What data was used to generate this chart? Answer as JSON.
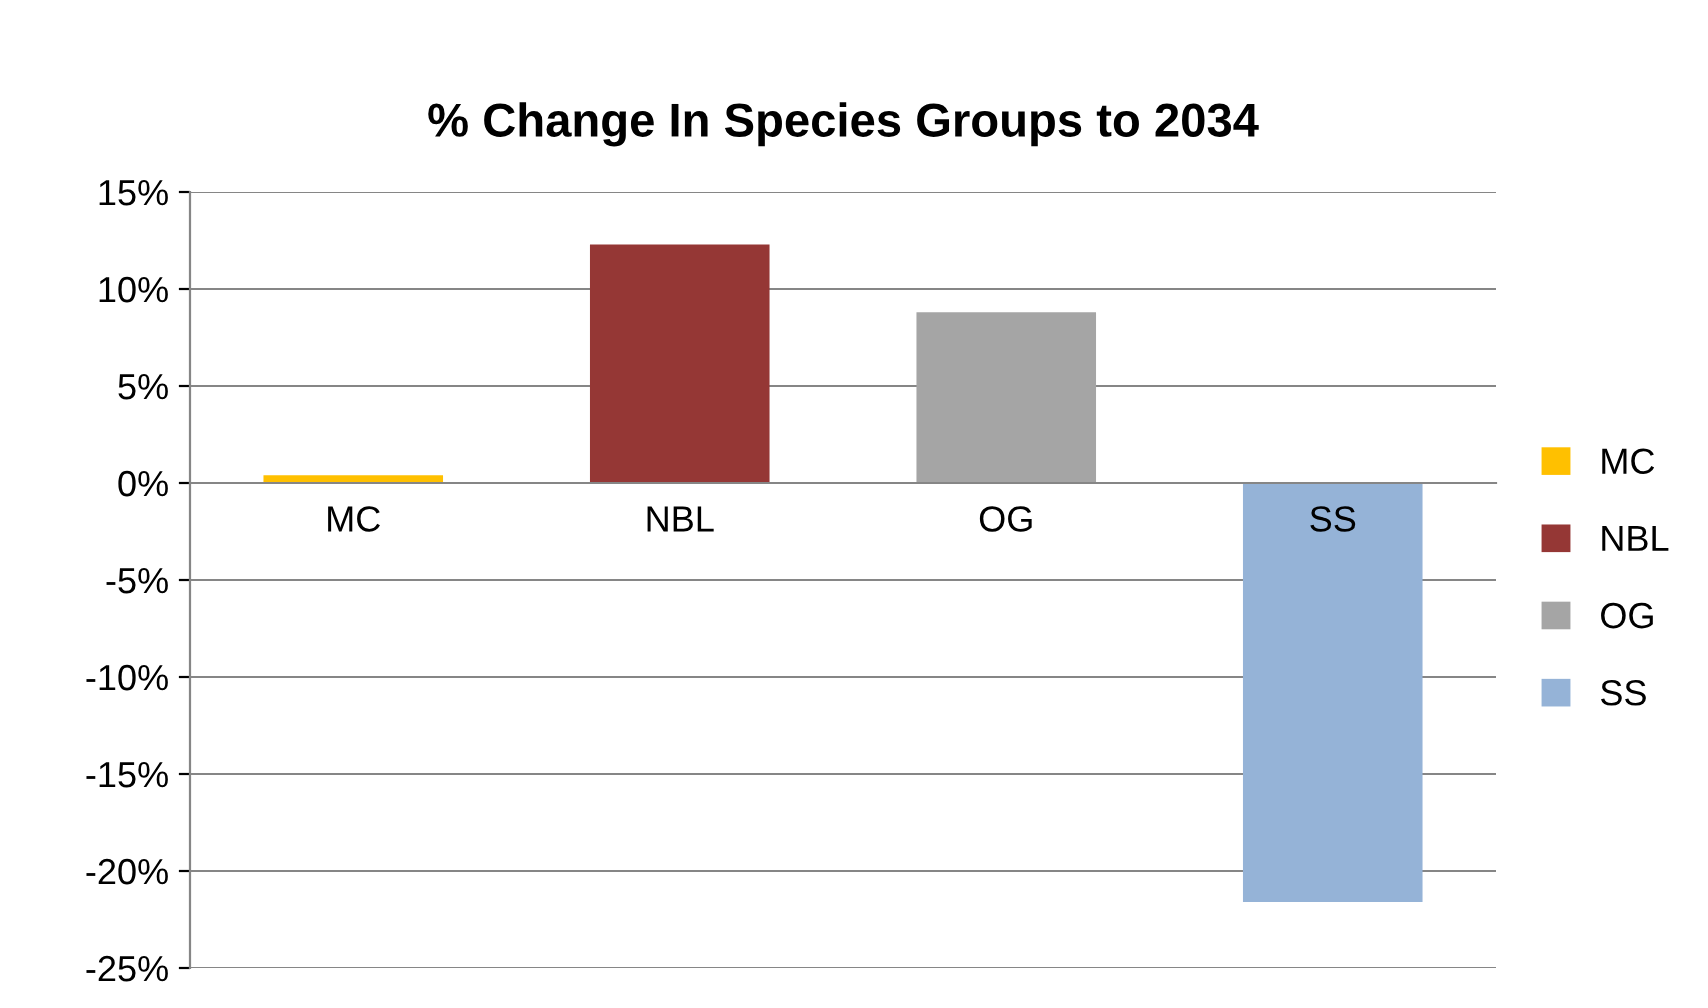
{
  "chart_data": {
    "type": "bar",
    "title": "% Change In Species Groups to 2034",
    "categories": [
      "MC",
      "NBL",
      "OG",
      "SS"
    ],
    "series": [
      {
        "name": "MC",
        "color": "#ffc000",
        "values": [
          0.4,
          null,
          null,
          null
        ]
      },
      {
        "name": "NBL",
        "color": "#953735",
        "values": [
          null,
          12.3,
          null,
          null
        ]
      },
      {
        "name": "OG",
        "color": "#a5a5a5",
        "values": [
          null,
          null,
          8.8,
          null
        ]
      },
      {
        "name": "SS",
        "color": "#95b3d7",
        "values": [
          null,
          null,
          null,
          -21.6
        ]
      }
    ],
    "ylim": [
      -25,
      15
    ],
    "yticks": [
      {
        "value": 15,
        "label": "15%"
      },
      {
        "value": 10,
        "label": "10%"
      },
      {
        "value": 5,
        "label": "5%"
      },
      {
        "value": 0,
        "label": "0%"
      },
      {
        "value": -5,
        "label": "-5%"
      },
      {
        "value": -10,
        "label": "-10%"
      },
      {
        "value": -15,
        "label": "-15%"
      },
      {
        "value": -20,
        "label": "-20%"
      },
      {
        "value": -25,
        "label": "-25%"
      }
    ],
    "grid": "y",
    "legend": "right"
  }
}
